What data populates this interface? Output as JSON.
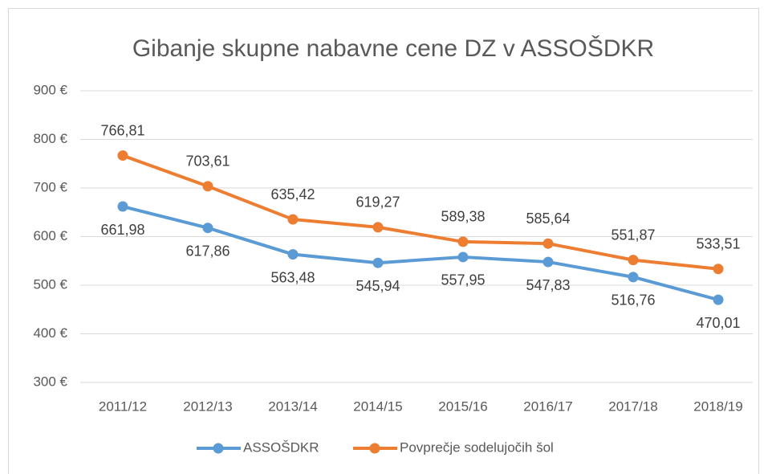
{
  "chart_data": {
    "type": "line",
    "title": "Gibanje skupne nabavne cene DZ v ASSOŠDKR",
    "categories": [
      "2011/12",
      "2012/13",
      "2013/14",
      "2014/15",
      "2015/16",
      "2016/17",
      "2017/18",
      "2018/19"
    ],
    "series": [
      {
        "name": "ASSOŠDKR",
        "color": "#5b9bd5",
        "values": [
          661.98,
          617.86,
          563.48,
          545.94,
          557.95,
          547.83,
          516.76,
          470.01
        ],
        "value_labels": [
          "661,98",
          "617,86",
          "563,48",
          "545,94",
          "557,95",
          "547,83",
          "516,76",
          "470,01"
        ]
      },
      {
        "name": "Povprečje sodelujočih šol",
        "color": "#ed7d31",
        "values": [
          766.81,
          703.61,
          635.42,
          619.27,
          589.38,
          585.64,
          551.87,
          533.51
        ],
        "value_labels": [
          "766,81",
          "703,61",
          "635,42",
          "619,27",
          "589,38",
          "585,64",
          "551,87",
          "533,51"
        ]
      }
    ],
    "ylim": [
      300,
      900
    ],
    "yticks": [
      {
        "value": 300,
        "label": "300 €"
      },
      {
        "value": 400,
        "label": "400 €"
      },
      {
        "value": 500,
        "label": "500 €"
      },
      {
        "value": 600,
        "label": "600 €"
      },
      {
        "value": 700,
        "label": "700 €"
      },
      {
        "value": 800,
        "label": "800 €"
      },
      {
        "value": 900,
        "label": "900 €"
      }
    ],
    "grid": true,
    "legend": "bottom"
  }
}
